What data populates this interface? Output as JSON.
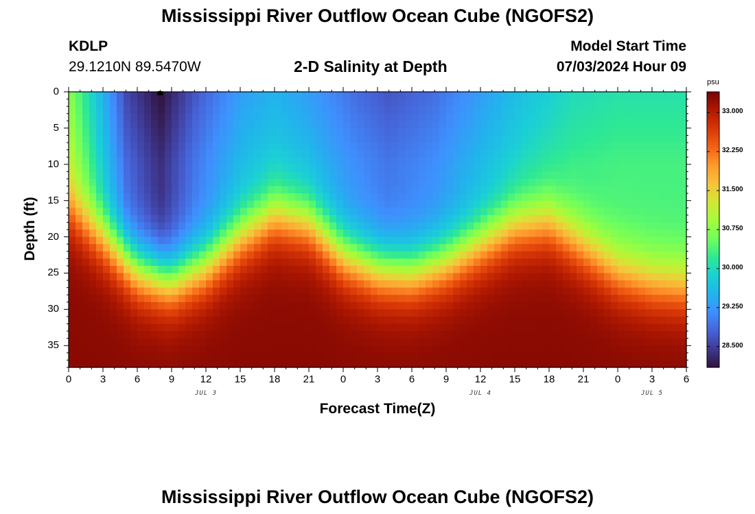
{
  "header": {
    "title": "Mississippi River Outflow Ocean Cube (NGOFS2)",
    "station": "KDLP",
    "coords": "29.1210N  89.5470W",
    "subtitle": "2-D Salinity at Depth",
    "model_start_label": "Model Start Time",
    "model_start_value": "07/03/2024 Hour 09"
  },
  "footer": {
    "title": "Mississippi River Outflow Ocean Cube (NGOFS2)"
  },
  "chart_data": {
    "type": "heatmap",
    "title": "2-D Salinity at Depth",
    "xlabel": "Forecast Time(Z)",
    "ylabel": "Depth (ft)",
    "x_ticks": [
      "0",
      "3",
      "6",
      "9",
      "12",
      "15",
      "18",
      "21",
      "0",
      "3",
      "6",
      "9",
      "12",
      "15",
      "18",
      "21",
      "0",
      "3",
      "6"
    ],
    "x_range_hours": [
      0,
      54
    ],
    "date_labels": [
      {
        "text": "JUL 3",
        "hour": 12
      },
      {
        "text": "JUL 4",
        "hour": 36
      },
      {
        "text": "JUL 5",
        "hour": 51
      }
    ],
    "y_ticks": [
      "0",
      "5",
      "10",
      "15",
      "20",
      "25",
      "30",
      "35"
    ],
    "y_range_ft": [
      0,
      38
    ],
    "y_inverted": true,
    "colorbar": {
      "unit": "psu",
      "ticks": [
        "33.000",
        "32.250",
        "31.500",
        "30.750",
        "30.000",
        "29.250",
        "28.500"
      ],
      "range": [
        28.1,
        33.4
      ],
      "colormap": [
        "#30123b",
        "#3e3891",
        "#4663d7",
        "#3f8ffe",
        "#21b4ec",
        "#1bd0d5",
        "#2ee894",
        "#6efe5e",
        "#a4fc3c",
        "#d1e834",
        "#f6c43b",
        "#fe9b2d",
        "#f36315",
        "#d93806",
        "#b11901",
        "#7a0403"
      ]
    },
    "marker": {
      "hour": 8,
      "depth_ft": 0
    },
    "halocline_depth_ft": [
      {
        "hour": 0,
        "depth": 16
      },
      {
        "hour": 3,
        "depth": 20
      },
      {
        "hour": 6,
        "depth": 24.5
      },
      {
        "hour": 9,
        "depth": 26
      },
      {
        "hour": 12,
        "depth": 24
      },
      {
        "hour": 15,
        "depth": 20
      },
      {
        "hour": 18,
        "depth": 17
      },
      {
        "hour": 21,
        "depth": 18
      },
      {
        "hour": 24,
        "depth": 22.5
      },
      {
        "hour": 27,
        "depth": 24.5
      },
      {
        "hour": 30,
        "depth": 25
      },
      {
        "hour": 33,
        "depth": 23.5
      },
      {
        "hour": 36,
        "depth": 21
      },
      {
        "hour": 39,
        "depth": 18.5
      },
      {
        "hour": 42,
        "depth": 18
      },
      {
        "hour": 45,
        "depth": 21.5
      },
      {
        "hour": 48,
        "depth": 25
      },
      {
        "hour": 51,
        "depth": 26.5
      },
      {
        "hour": 54,
        "depth": 27
      }
    ],
    "surface_salinity_psu": [
      {
        "hour": 0,
        "value": 30.8
      },
      {
        "hour": 3,
        "value": 29.5
      },
      {
        "hour": 5,
        "value": 28.6
      },
      {
        "hour": 8,
        "value": 28.1
      },
      {
        "hour": 11,
        "value": 28.7
      },
      {
        "hour": 15,
        "value": 29.3
      },
      {
        "hour": 18,
        "value": 29.5
      },
      {
        "hour": 21,
        "value": 29.3
      },
      {
        "hour": 25,
        "value": 28.9
      },
      {
        "hour": 28,
        "value": 28.7
      },
      {
        "hour": 32,
        "value": 28.9
      },
      {
        "hour": 36,
        "value": 29.3
      },
      {
        "hour": 40,
        "value": 29.7
      },
      {
        "hour": 44,
        "value": 30.0
      },
      {
        "hour": 48,
        "value": 30.1
      },
      {
        "hour": 54,
        "value": 30.1
      }
    ],
    "deep_salinity_psu": 33.3
  }
}
